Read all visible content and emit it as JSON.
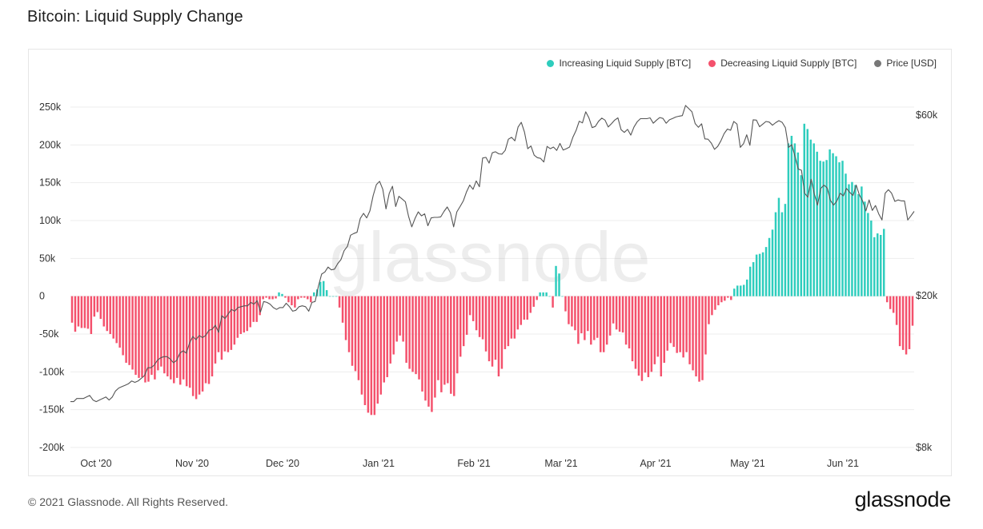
{
  "page": {
    "title": "Bitcoin: Liquid Supply Change",
    "copyright": "© 2021 Glassnode. All Rights Reserved.",
    "brand": "glassnode",
    "watermark": "glassnode"
  },
  "colors": {
    "increase": "#2ecdbd",
    "decrease": "#f4516c",
    "price": "#555555",
    "legend_price": "#777777"
  },
  "legend": [
    {
      "label": "Increasing Liquid Supply [BTC]",
      "color": "#2ecdbd"
    },
    {
      "label": "Decreasing Liquid Supply [BTC]",
      "color": "#f4516c"
    },
    {
      "label": "Price [USD]",
      "color": "#777777"
    }
  ],
  "chart_data": {
    "type": "bar",
    "title": "Bitcoin: Liquid Supply Change",
    "x_start": "2020-09-22",
    "x_ticks": [
      "Oct '20",
      "Nov '20",
      "Dec '20",
      "Jan '21",
      "Feb '21",
      "Mar '21",
      "Apr '21",
      "May '21",
      "Jun '21"
    ],
    "left_axis": {
      "ticks": [
        "250k",
        "200k",
        "150k",
        "100k",
        "50k",
        "0",
        "-50k",
        "-100k",
        "-150k",
        "-200k"
      ],
      "ylim": [
        -200000,
        250000
      ]
    },
    "right_axis": {
      "ticks": [
        "$60k",
        "$20k",
        "$8k"
      ],
      "scale": "log",
      "ylim": [
        8000,
        60000
      ]
    },
    "series": [
      {
        "name": "Liquid Supply Change [BTC]",
        "values": [
          -35000,
          -47000,
          -40000,
          -42000,
          -42000,
          -43000,
          -50000,
          -27000,
          -21000,
          -30000,
          -40000,
          -46000,
          -50000,
          -56000,
          -62000,
          -68000,
          -78000,
          -88000,
          -91000,
          -97000,
          -104000,
          -108000,
          -107000,
          -114000,
          -113000,
          -104000,
          -110000,
          -98000,
          -93000,
          -102000,
          -106000,
          -110000,
          -115000,
          -108000,
          -117000,
          -110000,
          -119000,
          -121000,
          -132000,
          -136000,
          -130000,
          -126000,
          -115000,
          -116000,
          -106000,
          -89000,
          -74000,
          -84000,
          -73000,
          -74000,
          -71000,
          -64000,
          -55000,
          -50000,
          -48000,
          -46000,
          -41000,
          -34000,
          -34000,
          -25000,
          -4000,
          -2000,
          -4000,
          -4000,
          -3000,
          5000,
          3000,
          -2000,
          -8000,
          -12000,
          -15000,
          -4000,
          -2000,
          -2000,
          -4000,
          -8000,
          5000,
          9000,
          19000,
          20000,
          8000,
          0,
          0,
          0,
          -15000,
          -35000,
          -58000,
          -74000,
          -92000,
          -99000,
          -111000,
          -130000,
          -144000,
          -154000,
          -157000,
          -157000,
          -142000,
          -130000,
          -114000,
          -107000,
          -89000,
          -77000,
          -60000,
          -52000,
          -60000,
          -88000,
          -96000,
          -100000,
          -103000,
          -110000,
          -126000,
          -138000,
          -146000,
          -153000,
          -134000,
          -111000,
          -127000,
          -117000,
          -115000,
          -129000,
          -132000,
          -102000,
          -80000,
          -66000,
          -51000,
          -25000,
          -33000,
          -45000,
          -54000,
          -57000,
          -73000,
          -86000,
          -93000,
          -84000,
          -106000,
          -96000,
          -70000,
          -66000,
          -56000,
          -56000,
          -44000,
          -38000,
          -31000,
          -31000,
          -22000,
          -14000,
          -5000,
          5000,
          5000,
          5000,
          0,
          -15000,
          40000,
          30000,
          0,
          -20000,
          -37000,
          -40000,
          -45000,
          -63000,
          -49000,
          -58000,
          -46000,
          -64000,
          -58000,
          -55000,
          -74000,
          -74000,
          -64000,
          -52000,
          -36000,
          -44000,
          -47000,
          -48000,
          -64000,
          -69000,
          -86000,
          -96000,
          -105000,
          -112000,
          -101000,
          -107000,
          -100000,
          -90000,
          -80000,
          -106000,
          -88000,
          -72000,
          -62000,
          -67000,
          -75000,
          -74000,
          -81000,
          -74000,
          -90000,
          -98000,
          -106000,
          -113000,
          -111000,
          -77000,
          -37000,
          -25000,
          -18000,
          -12000,
          -8000,
          -6000,
          -2000,
          -5000,
          10000,
          14000,
          14000,
          15000,
          22000,
          39000,
          45000,
          55000,
          56000,
          58000,
          65000,
          77000,
          88000,
          111000,
          130000,
          111000,
          122000,
          202000,
          212000,
          202000,
          190000,
          160000,
          228000,
          221000,
          207000,
          202000,
          191000,
          179000,
          178000,
          180000,
          194000,
          189000,
          185000,
          177000,
          179000,
          162000,
          148000,
          151000,
          147000,
          135000,
          145000,
          125000,
          110000,
          100000,
          78000,
          83000,
          81000,
          89000,
          -8000,
          -17000,
          -22000,
          -38000,
          -66000,
          -71000,
          -77000,
          -70000,
          -39000
        ]
      },
      {
        "name": "Price [USD]",
        "values": [
          10500,
          10500,
          10700,
          10700,
          10700,
          10800,
          10900,
          10600,
          10500,
          10600,
          10700,
          10800,
          10600,
          10800,
          11200,
          11400,
          11500,
          11600,
          11700,
          11900,
          11800,
          11900,
          12100,
          12300,
          12900,
          12900,
          13100,
          13500,
          13700,
          13800,
          13800,
          13600,
          13300,
          13500,
          14100,
          14300,
          14100,
          15000,
          15600,
          15300,
          15700,
          15500,
          15700,
          16200,
          16300,
          16700,
          16000,
          17700,
          17400,
          17900,
          18400,
          18200,
          18600,
          18700,
          18800,
          18800,
          19200,
          19000,
          19400,
          18100,
          19300,
          19200,
          19000,
          18600,
          18400,
          18600,
          18600,
          19100,
          18700,
          18200,
          18300,
          18700,
          18800,
          18700,
          18200,
          19200,
          19300,
          21200,
          22800,
          23100,
          23800,
          23400,
          23500,
          24300,
          24900,
          26300,
          27000,
          28900,
          29200,
          29400,
          32000,
          33000,
          32100,
          33500,
          36800,
          39300,
          40100,
          38200,
          33900,
          37300,
          38900,
          34400,
          36600,
          36000,
          35400,
          32400,
          30400,
          32000,
          33300,
          32500,
          32900,
          30600,
          32100,
          32200,
          32200,
          32300,
          33400,
          34300,
          33100,
          30400,
          33300,
          34400,
          35600,
          37600,
          39200,
          38200,
          40200,
          38800,
          46200,
          46400,
          44800,
          47700,
          48000,
          47400,
          47300,
          48400,
          51800,
          52400,
          51300,
          55800,
          57400,
          54100,
          48900,
          49700,
          47000,
          46300,
          46100,
          45100,
          49600,
          48900,
          49400,
          48400,
          50500,
          48500,
          48900,
          49400,
          52400,
          54600,
          57800,
          57200,
          61200,
          59000,
          55600,
          56000,
          57800,
          58900,
          58200,
          55800,
          56900,
          58200,
          59000,
          54900,
          54000,
          55000,
          53100,
          55800,
          57600,
          58700,
          58700,
          58700,
          59000,
          57100,
          58200,
          59100,
          58800,
          57100,
          58300,
          58800,
          59300,
          59600,
          59800,
          63600,
          62400,
          61200,
          57000,
          55700,
          56900,
          51900,
          51800,
          50600,
          48700,
          49600,
          51300,
          53600,
          55100,
          54700,
          57700,
          56800,
          49300,
          50400,
          53200,
          49900,
          58300,
          58200,
          55900,
          56800,
          57700,
          57500,
          56400,
          57300,
          58000,
          57400,
          55600,
          49300,
          50100,
          46600,
          43200,
          42900,
          37300,
          36400,
          40600,
          37100,
          34700,
          38400,
          39200,
          38500,
          35700,
          34700,
          35600,
          37300,
          36700,
          38400,
          37500,
          36800,
          39200,
          36900,
          35600,
          33500,
          35800,
          33600,
          34600,
          32900,
          31700,
          37300,
          38100,
          37300,
          35500,
          35800,
          35600,
          35600,
          31700,
          32500,
          33400
        ]
      }
    ]
  }
}
